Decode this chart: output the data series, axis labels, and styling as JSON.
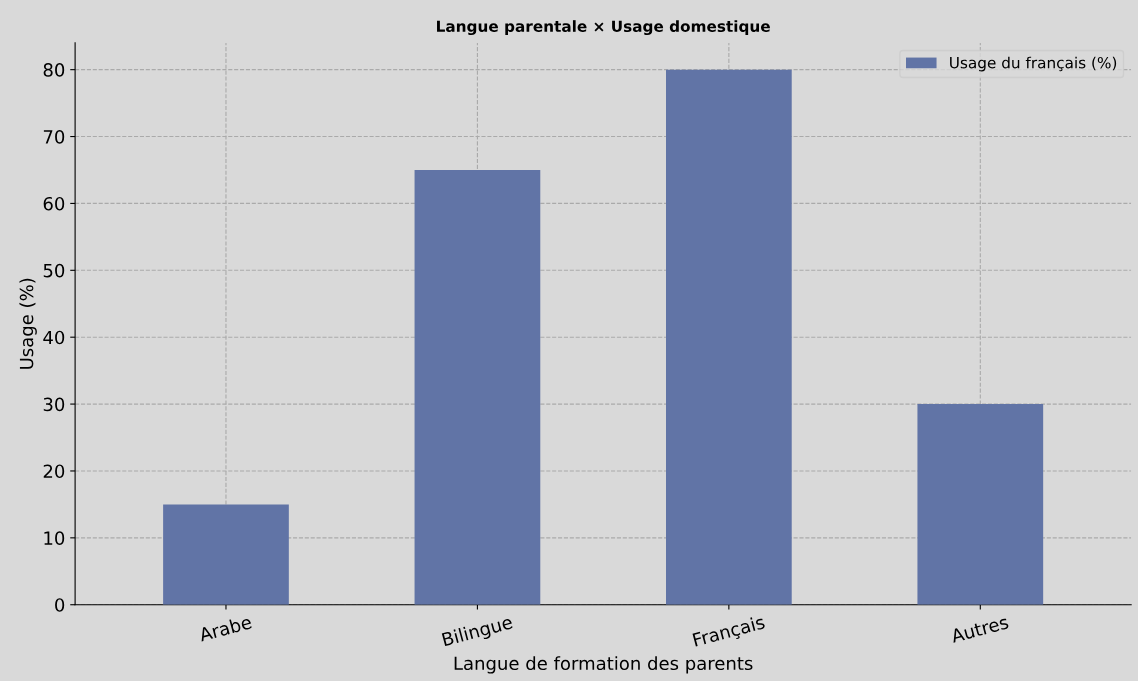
{
  "chart_data": {
    "type": "bar",
    "title": "Langue parentale × Usage domestique",
    "xlabel": "Langue de formation des parents",
    "ylabel": "Usage (%)",
    "categories": [
      "Arabe",
      "Bilingue",
      "Français",
      "Autres"
    ],
    "series": [
      {
        "name": "Usage du français (%)",
        "color": "#6174a6",
        "values": [
          15,
          65,
          80,
          30
        ]
      }
    ],
    "ylim": [
      0,
      84
    ],
    "yticks": [
      0,
      10,
      20,
      30,
      40,
      50,
      60,
      70,
      80
    ],
    "grid": true,
    "legend": "top right"
  }
}
